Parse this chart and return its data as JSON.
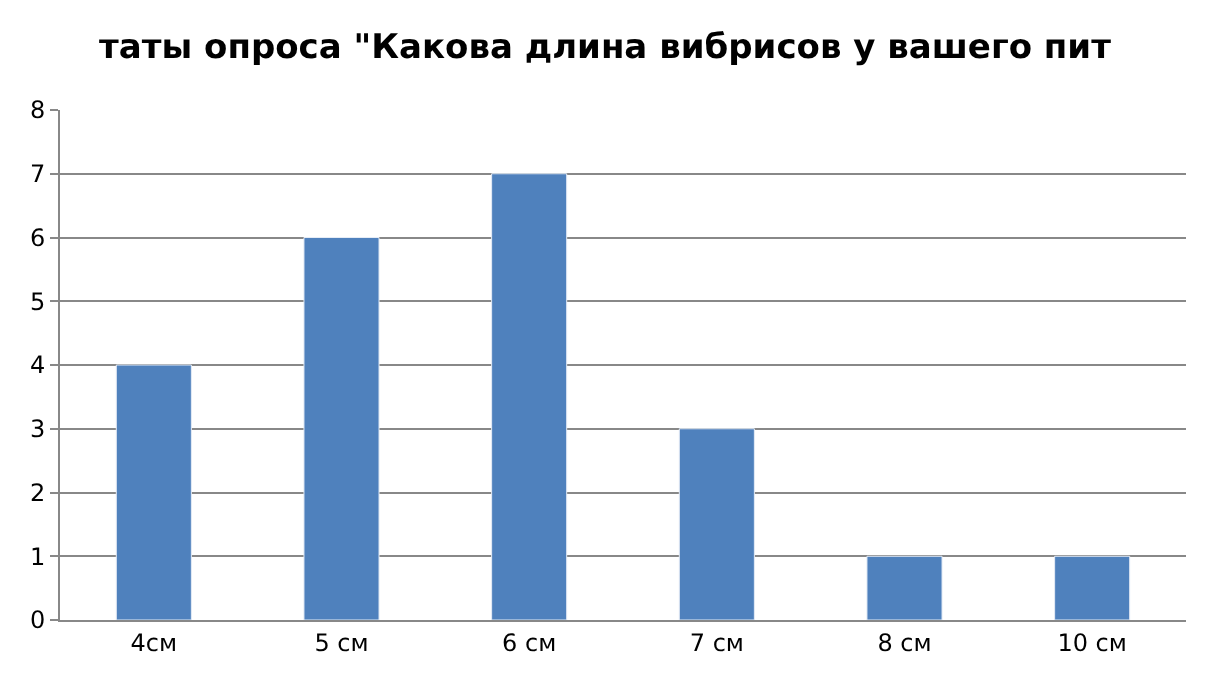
{
  "chart_data": {
    "type": "bar",
    "title": "таты опроса \"Какова длина вибрисов у вашего пит",
    "categories": [
      "4см",
      "5 см",
      "6 см",
      "7 см",
      "8 см",
      "10 см"
    ],
    "values": [
      4,
      6,
      7,
      3,
      1,
      1
    ],
    "color": "#4f81bd",
    "ylim": [
      0,
      8
    ],
    "yticks": [
      0,
      1,
      2,
      3,
      4,
      5,
      6,
      7,
      8
    ],
    "grid": "y",
    "legend": false
  }
}
